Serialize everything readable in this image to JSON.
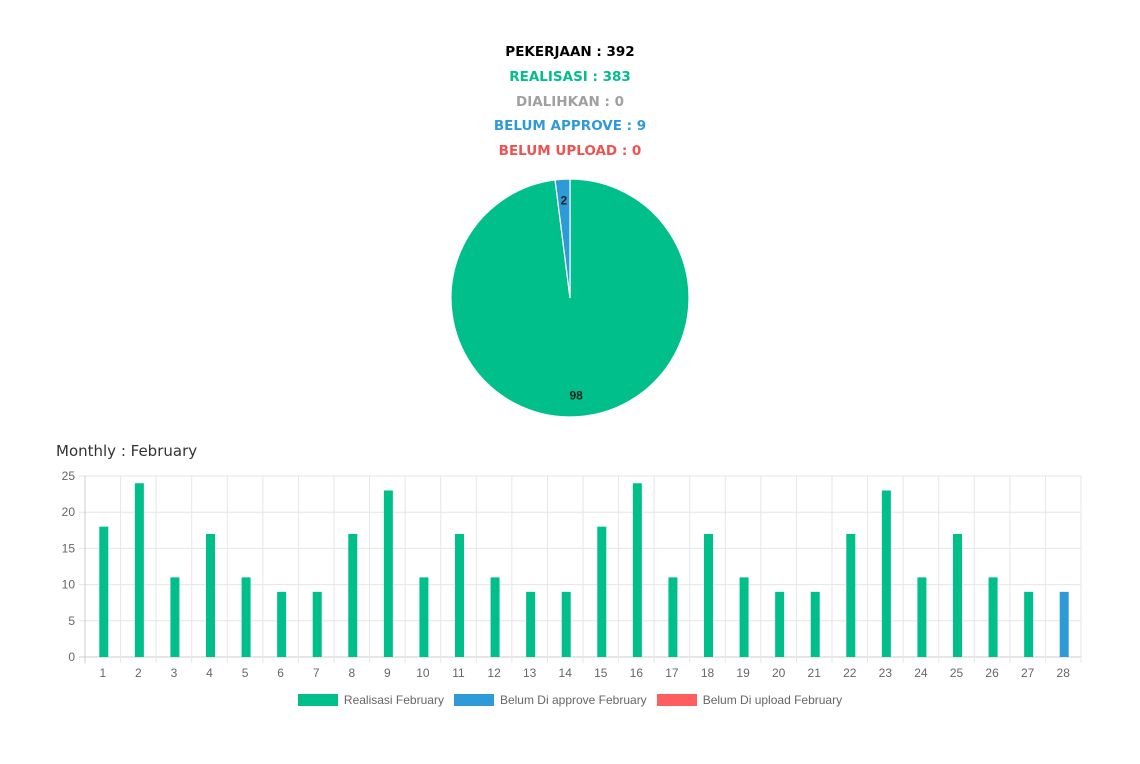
{
  "summary": {
    "pekerjaan": "PEKERJAAN : 392",
    "realisasi": "REALISASI : 383",
    "dialihkan": "DIALIHKAN : 0",
    "belum_approve": "BELUM APPROVE : 9",
    "belum_upload": "BELUM UPLOAD : 0"
  },
  "colors": {
    "pekerjaan": "#000000",
    "realisasi": "#00bf8a",
    "dialihkan": "#a0a0a0",
    "belum_approve": "#2e9bd8",
    "belum_upload": "#f0524f"
  },
  "monthly_title": "Monthly : February",
  "chart_data": [
    {
      "type": "pie",
      "slices": [
        {
          "value": 98,
          "label": "98",
          "color": "#00bf8a"
        },
        {
          "value": 2,
          "label": "2",
          "color": "#2e9bd8"
        }
      ]
    },
    {
      "type": "bar",
      "categories": [
        "1",
        "2",
        "3",
        "4",
        "5",
        "6",
        "7",
        "8",
        "9",
        "10",
        "11",
        "12",
        "13",
        "14",
        "15",
        "16",
        "17",
        "18",
        "19",
        "20",
        "21",
        "22",
        "23",
        "24",
        "25",
        "26",
        "27",
        "28"
      ],
      "series": [
        {
          "name": "Realisasi February",
          "color": "#00bf8a",
          "values": [
            18,
            24,
            11,
            17,
            11,
            9,
            9,
            17,
            23,
            11,
            17,
            11,
            9,
            9,
            18,
            24,
            11,
            17,
            11,
            9,
            9,
            17,
            23,
            11,
            17,
            11,
            9,
            0
          ]
        },
        {
          "name": "Belum Di approve February",
          "color": "#2e9bd8",
          "values": [
            0,
            0,
            0,
            0,
            0,
            0,
            0,
            0,
            0,
            0,
            0,
            0,
            0,
            0,
            0,
            0,
            0,
            0,
            0,
            0,
            0,
            0,
            0,
            0,
            0,
            0,
            0,
            9
          ]
        },
        {
          "name": "Belum Di upload February",
          "color": "#ff5e5e",
          "values": [
            0,
            0,
            0,
            0,
            0,
            0,
            0,
            0,
            0,
            0,
            0,
            0,
            0,
            0,
            0,
            0,
            0,
            0,
            0,
            0,
            0,
            0,
            0,
            0,
            0,
            0,
            0,
            0
          ]
        }
      ],
      "ylim": [
        0,
        25
      ],
      "yticks": [
        "0",
        "5",
        "10",
        "15",
        "20",
        "25"
      ],
      "grid": true,
      "legend": "bottom"
    }
  ]
}
